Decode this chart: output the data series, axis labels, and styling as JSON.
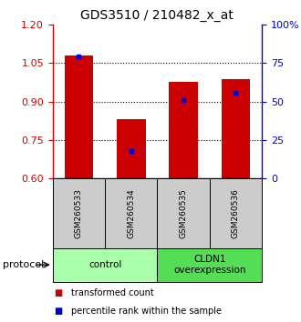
{
  "title": "GDS3510 / 210482_x_at",
  "samples": [
    "GSM260533",
    "GSM260534",
    "GSM260535",
    "GSM260536"
  ],
  "red_bar_tops": [
    1.08,
    0.83,
    0.975,
    0.985
  ],
  "blue_marker_values": [
    1.075,
    0.706,
    0.905,
    0.935
  ],
  "bar_bottom": 0.6,
  "ylim_left": [
    0.6,
    1.2
  ],
  "ylim_right": [
    0,
    100
  ],
  "yticks_left": [
    0.6,
    0.75,
    0.9,
    1.05,
    1.2
  ],
  "yticks_right": [
    0,
    25,
    50,
    75,
    100
  ],
  "ytick_labels_right": [
    "0",
    "25",
    "50",
    "75",
    "100%"
  ],
  "bar_color": "#cc0000",
  "blue_color": "#0000cc",
  "dotted_lines": [
    0.75,
    0.9,
    1.05
  ],
  "protocol_groups": [
    {
      "label": "control",
      "samples": [
        0,
        1
      ],
      "color": "#aaffaa"
    },
    {
      "label": "CLDN1\noverexpression",
      "samples": [
        2,
        3
      ],
      "color": "#55dd55"
    }
  ],
  "protocol_label": "protocol",
  "legend_items": [
    {
      "color": "#cc0000",
      "label": "transformed count"
    },
    {
      "color": "#0000cc",
      "label": "percentile rank within the sample"
    }
  ],
  "sample_box_color": "#cccccc",
  "bar_width": 0.55,
  "title_fontsize": 10,
  "tick_fontsize": 8,
  "sample_fontsize": 6.5,
  "protocol_fontsize": 7.5,
  "legend_fontsize": 7
}
